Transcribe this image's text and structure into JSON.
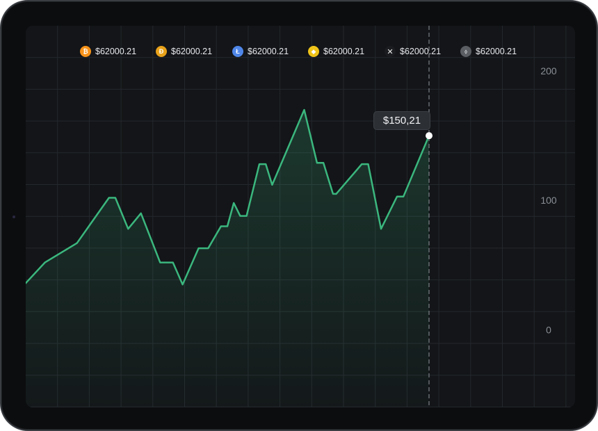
{
  "legend": [
    {
      "icon": "bitcoin-icon",
      "glyph": "₿",
      "color": "#f7931a",
      "value": "$62000.21"
    },
    {
      "icon": "dogecoin-icon",
      "glyph": "Ð",
      "color": "#e8a21a",
      "value": "$62000.21"
    },
    {
      "icon": "litecoin-icon",
      "glyph": "Ł",
      "color": "#4f86e8",
      "value": "$62000.21"
    },
    {
      "icon": "binance-icon",
      "glyph": "◆",
      "color": "#f0c419",
      "value": "$62000.21"
    },
    {
      "icon": "xrp-icon",
      "glyph": "✕",
      "color": "#1a1c1f",
      "value": "$62000.21"
    },
    {
      "icon": "ethereum-classic-icon",
      "glyph": "⬨",
      "color": "#5b5e63",
      "value": "$62000.21"
    }
  ],
  "tooltip": {
    "value": "$150,21"
  },
  "colors": {
    "line": "#3bb77e",
    "grid": "#24282d",
    "axis_text": "#8a8f96",
    "cursor": "#7d8288"
  },
  "chart_data": {
    "type": "area",
    "title": "",
    "xlabel": "",
    "ylabel": "",
    "y_ticks": [
      0,
      100,
      200
    ],
    "ylim": [
      -60,
      235
    ],
    "xlim": [
      0,
      63
    ],
    "grid": true,
    "legend_position": "top-center",
    "cursor_x": 63,
    "series": [
      {
        "values": [
          {
            "x": 0,
            "y": 36
          },
          {
            "x": 3,
            "y": 52
          },
          {
            "x": 8,
            "y": 67
          },
          {
            "x": 13,
            "y": 102
          },
          {
            "x": 14,
            "y": 102
          },
          {
            "x": 16,
            "y": 78
          },
          {
            "x": 18,
            "y": 90
          },
          {
            "x": 21,
            "y": 52
          },
          {
            "x": 23,
            "y": 52
          },
          {
            "x": 24.5,
            "y": 35
          },
          {
            "x": 27,
            "y": 63
          },
          {
            "x": 28.5,
            "y": 63
          },
          {
            "x": 30.5,
            "y": 80
          },
          {
            "x": 31.5,
            "y": 80
          },
          {
            "x": 32.5,
            "y": 98
          },
          {
            "x": 33.5,
            "y": 88
          },
          {
            "x": 34.5,
            "y": 88
          },
          {
            "x": 36.5,
            "y": 128
          },
          {
            "x": 37.5,
            "y": 128
          },
          {
            "x": 38.5,
            "y": 112
          },
          {
            "x": 43.5,
            "y": 170
          },
          {
            "x": 45.5,
            "y": 129
          },
          {
            "x": 46.5,
            "y": 129
          },
          {
            "x": 48,
            "y": 105
          },
          {
            "x": 48.5,
            "y": 105
          },
          {
            "x": 52.5,
            "y": 128
          },
          {
            "x": 53.5,
            "y": 128
          },
          {
            "x": 55.5,
            "y": 78
          },
          {
            "x": 58,
            "y": 103
          },
          {
            "x": 59,
            "y": 103
          },
          {
            "x": 63,
            "y": 150
          }
        ]
      }
    ]
  }
}
